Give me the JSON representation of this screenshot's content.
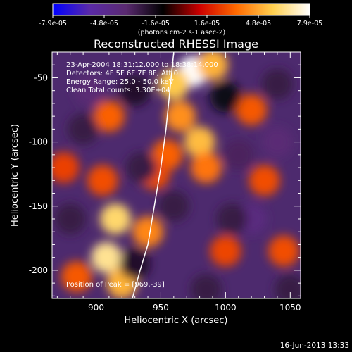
{
  "chart_data": {
    "type": "heatmap",
    "title": "Reconstructed RHESSI Image",
    "xlabel": "Heliocentric X (arcsec)",
    "ylabel": "Heliocentric Y (arcsec)",
    "xlim": [
      866,
      1058
    ],
    "ylim": [
      -222,
      -30
    ],
    "x_ticks": [
      900,
      950,
      1000,
      1050
    ],
    "y_ticks": [
      -50,
      -100,
      -150,
      -200
    ],
    "colorbar": {
      "ticks": [
        "-7.9e-05",
        "-4.8e-05",
        "-1.6e-05",
        "1.6e-05",
        "4.8e-05",
        "7.9e-05"
      ],
      "vmin": -7.9e-05,
      "vmax": 7.9e-05,
      "unit_label": "(photons cm-2 s-1 asec-2)",
      "colors": [
        "#0000ff",
        "#5a2aa8",
        "#5a2a70",
        "#000000",
        "#cc0000",
        "#ff6a00",
        "#ffd050",
        "#ffffff"
      ]
    },
    "annotations": {
      "time_range": "23-Apr-2004 18:31:12.000 to 18:38:14.000",
      "detectors": "Detectors: 4F 5F 6F 7F 8F, Att 0",
      "energy": "Energy Range: 25.0 - 50.0 keV",
      "method": "Clean    Total counts: 3.30E+04",
      "peak": "Position of Peak = [969,-39]"
    },
    "limb_color": "#ffffff",
    "blobs": [
      {
        "x": 975,
        "y": -45,
        "v": 7.9e-05
      },
      {
        "x": 960,
        "y": -55,
        "v": 5.5e-05
      },
      {
        "x": 990,
        "y": -40,
        "v": 5e-05
      },
      {
        "x": 965,
        "y": -80,
        "v": 4.2e-05
      },
      {
        "x": 980,
        "y": -100,
        "v": 5.2e-05
      },
      {
        "x": 985,
        "y": -120,
        "v": 3.6e-05
      },
      {
        "x": 955,
        "y": -110,
        "v": 3.2e-05
      },
      {
        "x": 945,
        "y": -125,
        "v": 2.8e-05
      },
      {
        "x": 910,
        "y": -80,
        "v": 3.2e-05
      },
      {
        "x": 905,
        "y": -130,
        "v": 2.8e-05
      },
      {
        "x": 915,
        "y": -160,
        "v": 6e-05
      },
      {
        "x": 908,
        "y": -190,
        "v": 6.5e-05
      },
      {
        "x": 920,
        "y": -210,
        "v": 5e-05
      },
      {
        "x": 940,
        "y": -170,
        "v": 4e-05
      },
      {
        "x": 1020,
        "y": -75,
        "v": 3e-05
      },
      {
        "x": 1030,
        "y": -130,
        "v": 2.8e-05
      },
      {
        "x": 1000,
        "y": -185,
        "v": 2.6e-05
      },
      {
        "x": 1045,
        "y": -185,
        "v": 2.8e-05
      },
      {
        "x": 875,
        "y": -120,
        "v": 2.5e-05
      },
      {
        "x": 885,
        "y": -205,
        "v": 3e-05
      },
      {
        "x": 930,
        "y": -60,
        "v": -2e-05
      },
      {
        "x": 895,
        "y": -60,
        "v": -3.5e-05
      },
      {
        "x": 930,
        "y": -195,
        "v": -2e-05
      },
      {
        "x": 1040,
        "y": -100,
        "v": -3.6e-05
      },
      {
        "x": 1040,
        "y": -55,
        "v": -2.5e-05
      },
      {
        "x": 1010,
        "y": -110,
        "v": -3e-05
      },
      {
        "x": 1020,
        "y": -160,
        "v": -4e-05
      },
      {
        "x": 1005,
        "y": -160,
        "v": -2.5e-05
      },
      {
        "x": 960,
        "y": -150,
        "v": -2.5e-05
      },
      {
        "x": 935,
        "y": -120,
        "v": -2.5e-05
      },
      {
        "x": 880,
        "y": -160,
        "v": -2.5e-05
      },
      {
        "x": 890,
        "y": -90,
        "v": -2.5e-05
      },
      {
        "x": 985,
        "y": -215,
        "v": -2.5e-05
      },
      {
        "x": 1050,
        "y": -215,
        "v": -2.5e-05
      },
      {
        "x": 1000,
        "y": -65,
        "v": -1.5e-05
      }
    ],
    "limb_points": [
      {
        "x": 928,
        "y": -222
      },
      {
        "x": 934,
        "y": -200
      },
      {
        "x": 940,
        "y": -180
      },
      {
        "x": 945,
        "y": -150
      },
      {
        "x": 950,
        "y": -120
      },
      {
        "x": 954,
        "y": -90
      },
      {
        "x": 957,
        "y": -60
      },
      {
        "x": 960,
        "y": -30
      }
    ]
  },
  "footer": {
    "timestamp": "16-Jun-2013 13:33"
  }
}
